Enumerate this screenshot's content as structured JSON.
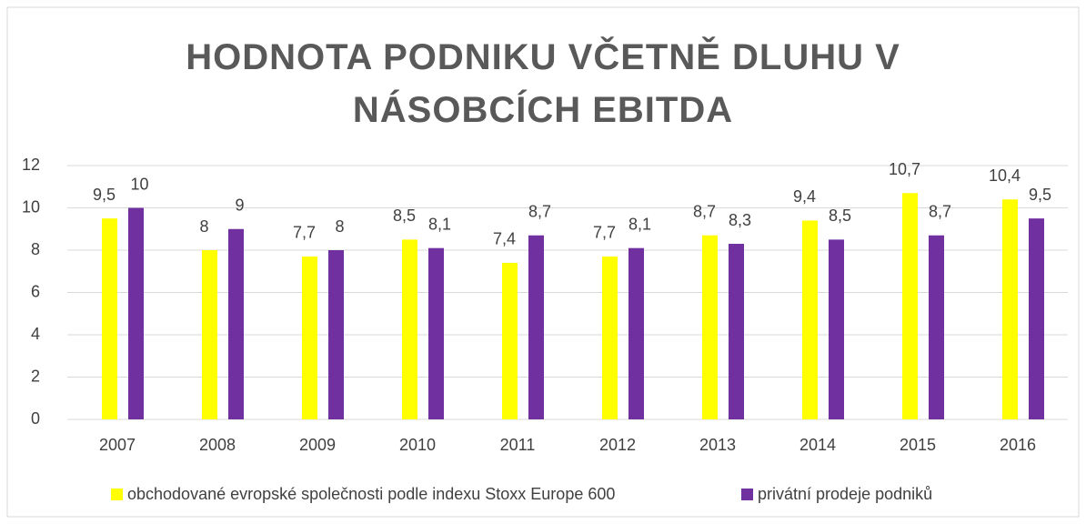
{
  "chart_data": {
    "type": "bar",
    "title": "HODNOTA PODNIKU VČETNĚ DLUHU V NÁSOBCÍCH EBITDA",
    "categories": [
      "2007",
      "2008",
      "2009",
      "2010",
      "2011",
      "2012",
      "2013",
      "2014",
      "2015",
      "2016"
    ],
    "series": [
      {
        "name": "obchodované evropské společnosti podle indexu Stoxx Europe 600",
        "color": "#ffff00",
        "values": [
          9.5,
          8,
          7.7,
          8.5,
          7.4,
          7.7,
          8.7,
          9.4,
          10.7,
          10.4
        ],
        "value_labels": [
          "9,5",
          "8",
          "7,7",
          "8,5",
          "7,4",
          "7,7",
          "8,7",
          "9,4",
          "10,7",
          "10,4"
        ]
      },
      {
        "name": "privátní prodeje podniků",
        "color": "#7030a0",
        "values": [
          10,
          9,
          8,
          8.1,
          8.7,
          8.1,
          8.3,
          8.5,
          8.7,
          9.5
        ],
        "value_labels": [
          "10",
          "9",
          "8",
          "8,1",
          "8,7",
          "8,1",
          "8,3",
          "8,5",
          "8,7",
          "9,5"
        ]
      }
    ],
    "ylim": [
      0,
      12
    ],
    "yticks": [
      0,
      2,
      4,
      6,
      8,
      10,
      12
    ],
    "grid": true,
    "legend": "bottom"
  }
}
